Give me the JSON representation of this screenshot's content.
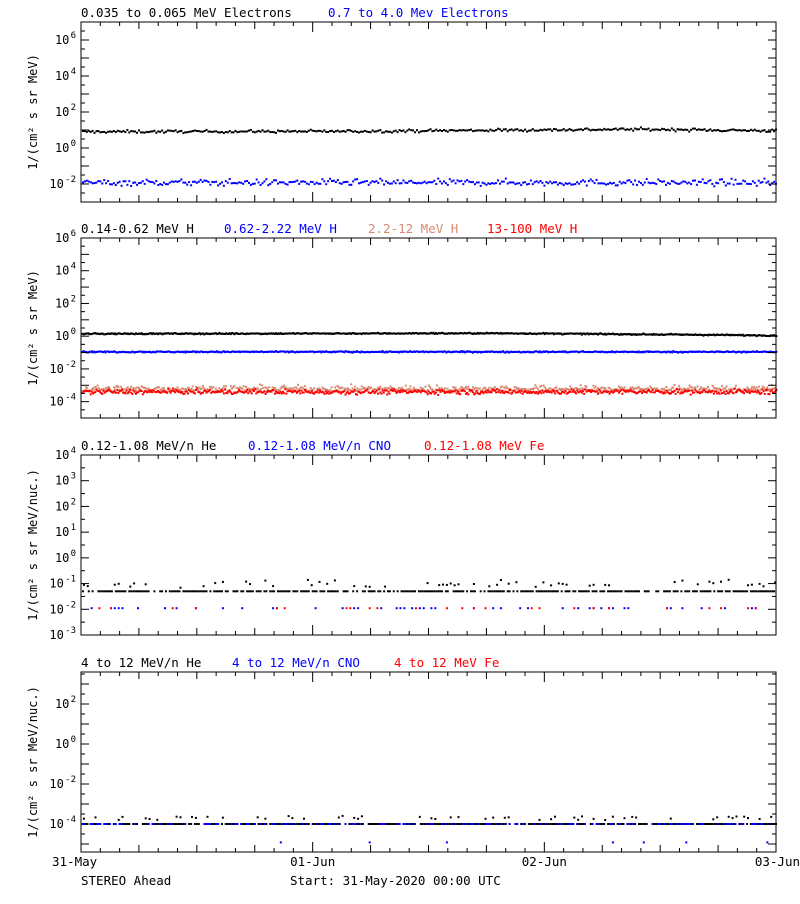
{
  "colors": {
    "black": "#000000",
    "blue": "#0000ff",
    "salmon": "#d78b72",
    "red": "#ff0000"
  },
  "footer": {
    "left": "STEREO Ahead",
    "center": "Start: 31-May-2020 00:00 UTC"
  },
  "chart_data": [
    {
      "type": "scatter",
      "log_y": true,
      "ylabel": "1/(cm² s sr MeV)",
      "ylim_exp": [
        -3,
        7
      ],
      "yticks": [
        {
          "exp": -2,
          "label": "10",
          "sup": "-2"
        },
        {
          "exp": 0,
          "label": "10",
          "sup": "0"
        },
        {
          "exp": 2,
          "label": "10",
          "sup": "2"
        },
        {
          "exp": 4,
          "label": "10",
          "sup": "4"
        },
        {
          "exp": 6,
          "label": "10",
          "sup": "6"
        }
      ],
      "xlim_days": [
        0,
        3
      ],
      "series": [
        {
          "name": "0.035 to 0.065 MeV Electrons",
          "color": "black",
          "level": 8,
          "scatter": 0.08,
          "fill": 1.0,
          "every_h": 0.2,
          "trend": [
            [
              0,
              8
            ],
            [
              1.2,
              8.5
            ],
            [
              2.4,
              11
            ],
            [
              3,
              9
            ]
          ]
        },
        {
          "name": "0.7 to 4.0 Mev Electrons",
          "color": "blue",
          "level": 0.012,
          "scatter": 0.18,
          "fill": 1.0,
          "every_h": 0.2
        }
      ]
    },
    {
      "type": "scatter",
      "log_y": true,
      "ylabel": "1/(cm² s sr MeV)",
      "ylim_exp": [
        -5,
        6
      ],
      "yticks": [
        {
          "exp": -4,
          "label": "10",
          "sup": "-4"
        },
        {
          "exp": -2,
          "label": "10",
          "sup": "-2"
        },
        {
          "exp": 0,
          "label": "10",
          "sup": "0"
        },
        {
          "exp": 2,
          "label": "10",
          "sup": "2"
        },
        {
          "exp": 4,
          "label": "10",
          "sup": "4"
        },
        {
          "exp": 6,
          "label": "10",
          "sup": "6"
        }
      ],
      "xlim_days": [
        0,
        3
      ],
      "series": [
        {
          "name": "0.14-0.62 MeV H",
          "color": "black",
          "level": 1.3,
          "scatter": 0.04,
          "fill": 1.0,
          "every_h": 0.12,
          "trend": [
            [
              0,
              1.4
            ],
            [
              1.8,
              1.5
            ],
            [
              3,
              1.1
            ]
          ]
        },
        {
          "name": "0.62-2.22 MeV H",
          "color": "blue",
          "level": 0.11,
          "scatter": 0.04,
          "fill": 1.0,
          "every_h": 0.12
        },
        {
          "name": "2.2-12 MeV H",
          "color": "salmon",
          "level": 0.0006,
          "scatter": 0.2,
          "fill": 1.0,
          "every_h": 0.12
        },
        {
          "name": "13-100 MeV H",
          "color": "red",
          "level": 0.0004,
          "scatter": 0.15,
          "fill": 1.0,
          "every_h": 0.12
        }
      ]
    },
    {
      "type": "scatter",
      "log_y": true,
      "ylabel": "1/(cm² s sr MeV/nuc.)",
      "ylim_exp": [
        -3,
        4
      ],
      "yticks": [
        {
          "exp": -3,
          "label": "10",
          "sup": "-3"
        },
        {
          "exp": -2,
          "label": "10",
          "sup": "-2"
        },
        {
          "exp": -1,
          "label": "10",
          "sup": "-1"
        },
        {
          "exp": 0,
          "label": "10",
          "sup": "0"
        },
        {
          "exp": 1,
          "label": "10",
          "sup": "1"
        },
        {
          "exp": 2,
          "label": "10",
          "sup": "2"
        },
        {
          "exp": 3,
          "label": "10",
          "sup": "3"
        },
        {
          "exp": 4,
          "label": "10",
          "sup": "4"
        }
      ],
      "xlim_days": [
        0,
        3
      ],
      "series": [
        {
          "name": "0.12-1.08 MeV/n He",
          "color": "black",
          "level": 0.05,
          "scatter": 0.0,
          "fill": 0.75,
          "every_h": 0.2,
          "extra": {
            "level": 0.1,
            "scatter": 0.15,
            "fill": 0.3
          }
        },
        {
          "name": "0.12-1.08 MeV/n CNO",
          "color": "blue",
          "level": 0.011,
          "scatter": 0.0,
          "fill": 0.28,
          "every_h": 0.4
        },
        {
          "name": "0.12-1.08 MeV Fe",
          "color": "red",
          "level": 0.011,
          "scatter": 0.0,
          "fill": 0.22,
          "every_h": 0.4
        }
      ]
    },
    {
      "type": "scatter",
      "log_y": true,
      "ylabel": "1/(cm² s sr MeV/nuc.)",
      "ylim_exp": [
        -5.4,
        3.6
      ],
      "yticks": [
        {
          "exp": -4,
          "label": "10",
          "sup": "-4"
        },
        {
          "exp": -2,
          "label": "10",
          "sup": "-2"
        },
        {
          "exp": 0,
          "label": "10",
          "sup": "0"
        },
        {
          "exp": 2,
          "label": "10",
          "sup": "2"
        }
      ],
      "xlim_days": [
        0,
        3
      ],
      "series": [
        {
          "name": "4 to 12 MeV/n He",
          "color": "black",
          "level": 0.0001,
          "scatter": 0.0,
          "fill": 0.8,
          "every_h": 0.2,
          "extra": {
            "level": 0.0002,
            "scatter": 0.1,
            "fill": 0.3
          }
        },
        {
          "name": "4 to 12 MeV/n CNO",
          "color": "blue",
          "level": 0.0001,
          "scatter": 0.0,
          "fill": 0.35,
          "every_h": 0.2,
          "extra": {
            "level": 1.2e-05,
            "scatter": 0.0,
            "fill": 0.05
          }
        },
        {
          "name": "4 to 12 MeV Fe",
          "color": "red",
          "level": 1.2e-05,
          "scatter": 0.0,
          "fill": 0.0,
          "every_h": 0.4
        }
      ]
    }
  ],
  "x_axis": {
    "ticks": [
      {
        "day": 0,
        "label": "31-May"
      },
      {
        "day": 1,
        "label": "01-Jun"
      },
      {
        "day": 2,
        "label": "02-Jun"
      },
      {
        "day": 3,
        "label": "03-Jun"
      }
    ]
  }
}
